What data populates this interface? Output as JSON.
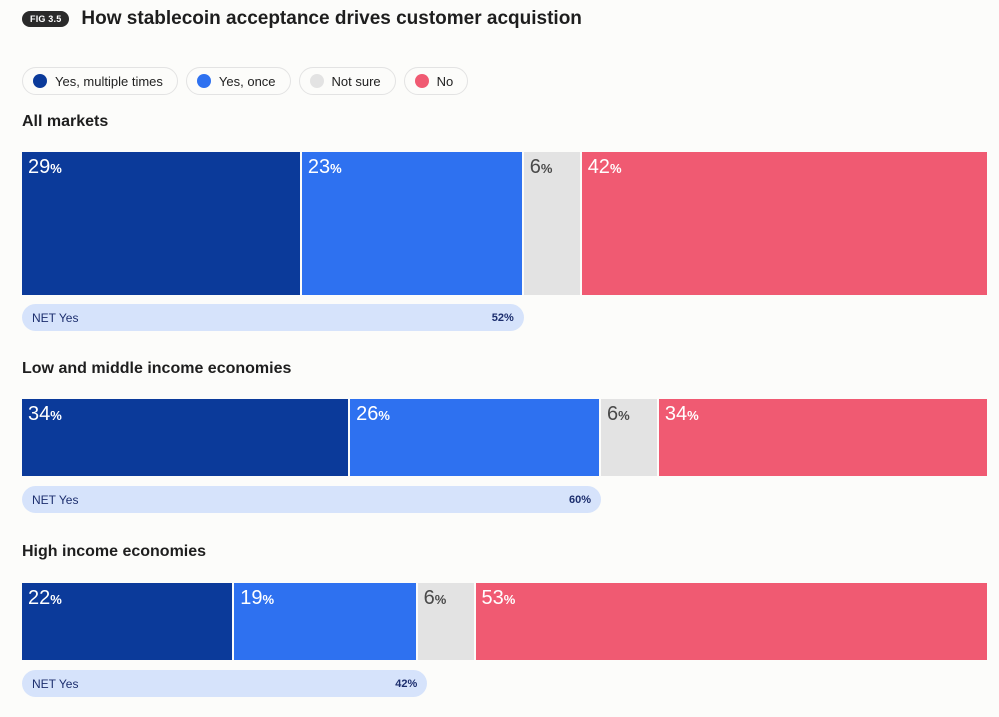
{
  "header": {
    "fig_label": "FIG 3.5",
    "title": "How stablecoin acceptance drives customer acquistion"
  },
  "chart_data": {
    "type": "bar",
    "orientation": "horizontal-stacked-100",
    "series_names": [
      "Yes, multiple times",
      "Yes, once",
      "Not sure",
      "No"
    ],
    "colors": [
      "#0b3a9a",
      "#2e71f0",
      "#e3e3e3",
      "#f05a72"
    ],
    "pct_symbol": "%",
    "net_label": "NET Yes",
    "groups": [
      {
        "name": "All markets",
        "values": [
          29,
          23,
          6,
          42
        ],
        "net_yes": 52
      },
      {
        "name": "Low and middle income economies",
        "values": [
          34,
          26,
          6,
          34
        ],
        "net_yes": 60
      },
      {
        "name": "High income economies",
        "values": [
          22,
          19,
          6,
          53
        ],
        "net_yes": 42
      }
    ]
  }
}
